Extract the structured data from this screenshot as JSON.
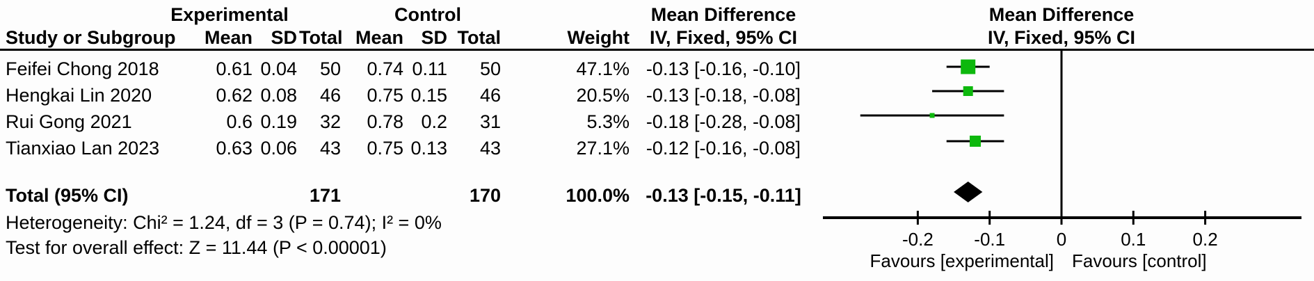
{
  "header": {
    "group1": "Experimental",
    "group2": "Control",
    "study_col": "Study or Subgroup",
    "mean": "Mean",
    "sd": "SD",
    "total": "Total",
    "weight": "Weight",
    "effect_title": "Mean Difference",
    "effect_sub": "IV, Fixed, 95% CI",
    "plot_title": "Mean Difference",
    "plot_sub": "IV, Fixed, 95% CI"
  },
  "footnotes": {
    "heterogeneity": "Heterogeneity: Chi² = 1.24, df = 3 (P = 0.74); I² = 0%",
    "overall_effect": "Test for overall effect: Z = 11.44 (P < 0.00001)"
  },
  "chart_data": {
    "type": "scatter",
    "variant": "forest_plot_fixed_effect_mean_difference",
    "effect_measure": "Mean Difference (IV, Fixed, 95% CI)",
    "studies": [
      {
        "study": "Feifei Chong 2018",
        "exp_mean": "0.61",
        "exp_sd": "0.04",
        "exp_total": "50",
        "ctrl_mean": "0.74",
        "ctrl_sd": "0.11",
        "ctrl_total": "50",
        "weight": "47.1%",
        "weight_pct": 47.1,
        "md": -0.13,
        "ci_low": -0.16,
        "ci_high": -0.1,
        "ci_text": "-0.13 [-0.16, -0.10]"
      },
      {
        "study": "Hengkai Lin 2020",
        "exp_mean": "0.62",
        "exp_sd": "0.08",
        "exp_total": "46",
        "ctrl_mean": "0.75",
        "ctrl_sd": "0.15",
        "ctrl_total": "46",
        "weight": "20.5%",
        "weight_pct": 20.5,
        "md": -0.13,
        "ci_low": -0.18,
        "ci_high": -0.08,
        "ci_text": "-0.13 [-0.18, -0.08]"
      },
      {
        "study": "Rui Gong 2021",
        "exp_mean": "0.6",
        "exp_sd": "0.19",
        "exp_total": "32",
        "ctrl_mean": "0.78",
        "ctrl_sd": "0.2",
        "ctrl_total": "31",
        "weight": "5.3%",
        "weight_pct": 5.3,
        "md": -0.18,
        "ci_low": -0.28,
        "ci_high": -0.08,
        "ci_text": "-0.18 [-0.28, -0.08]"
      },
      {
        "study": "Tianxiao Lan 2023",
        "exp_mean": "0.63",
        "exp_sd": "0.06",
        "exp_total": "43",
        "ctrl_mean": "0.75",
        "ctrl_sd": "0.13",
        "ctrl_total": "43",
        "weight": "27.1%",
        "weight_pct": 27.1,
        "md": -0.12,
        "ci_low": -0.16,
        "ci_high": -0.08,
        "ci_text": "-0.12 [-0.16, -0.08]"
      }
    ],
    "total": {
      "label": "Total (95% CI)",
      "exp_total": "171",
      "ctrl_total": "170",
      "weight": "100.0%",
      "md": -0.13,
      "ci_low": -0.15,
      "ci_high": -0.11,
      "ci_text": "-0.13 [-0.15, -0.11]"
    },
    "axis": {
      "ticks": [
        -0.2,
        -0.1,
        0,
        0.1,
        0.2
      ],
      "tick_labels": [
        "-0.2",
        "-0.1",
        "0",
        "0.1",
        "0.2"
      ],
      "xmin": -0.33,
      "xmax": 0.33,
      "favours_left": "Favours [experimental]",
      "favours_right": "Favours [control]"
    },
    "marker_color": "#0db80d",
    "diamond_color": "#000000",
    "line_color": "#000000"
  }
}
